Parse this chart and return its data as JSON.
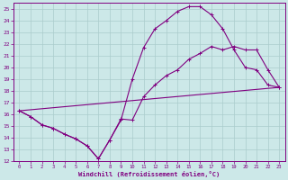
{
  "xlabel": "Windchill (Refroidissement éolien,°C)",
  "background_color": "#cce8e8",
  "grid_color": "#aacccc",
  "line_color": "#800080",
  "xlim": [
    -0.5,
    23.5
  ],
  "ylim": [
    12,
    25.5
  ],
  "xticks": [
    0,
    1,
    2,
    3,
    4,
    5,
    6,
    7,
    8,
    9,
    10,
    11,
    12,
    13,
    14,
    15,
    16,
    17,
    18,
    19,
    20,
    21,
    22,
    23
  ],
  "yticks": [
    12,
    13,
    14,
    15,
    16,
    17,
    18,
    19,
    20,
    21,
    22,
    23,
    24,
    25
  ],
  "curve1_x": [
    0,
    1,
    2,
    3,
    4,
    5,
    6,
    7,
    8,
    9,
    10,
    11,
    12,
    13,
    14,
    15,
    16,
    17,
    18,
    19,
    20,
    21,
    22,
    23
  ],
  "curve1_y": [
    16.3,
    15.8,
    15.1,
    14.8,
    14.3,
    13.9,
    13.3,
    12.2,
    13.8,
    15.5,
    19.0,
    21.7,
    23.3,
    24.0,
    24.8,
    25.2,
    25.2,
    24.5,
    23.3,
    21.5,
    20.0,
    19.8,
    18.5,
    18.3
  ],
  "curve2_x": [
    0,
    1,
    2,
    3,
    4,
    5,
    6,
    7,
    8,
    9,
    10,
    11,
    12,
    13,
    14,
    15,
    16,
    17,
    18,
    19,
    20,
    21,
    22,
    23
  ],
  "curve2_y": [
    16.3,
    15.8,
    15.1,
    14.8,
    14.3,
    13.9,
    13.3,
    12.2,
    13.8,
    15.6,
    15.5,
    17.5,
    18.5,
    19.3,
    19.8,
    20.7,
    21.2,
    21.8,
    21.5,
    21.8,
    21.5,
    21.5,
    19.8,
    18.3
  ],
  "curve3_x": [
    0,
    23
  ],
  "curve3_y": [
    16.3,
    18.3
  ]
}
